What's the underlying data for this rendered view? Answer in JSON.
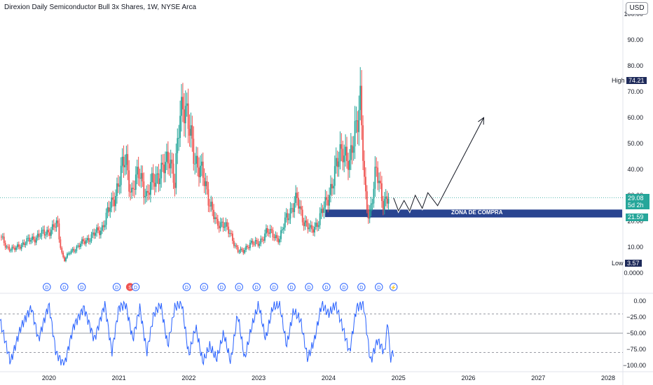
{
  "header": {
    "title": "Direxion Daily Semiconductor Bull 3x Shares, 1W, NYSE Arca",
    "currency": "USD"
  },
  "price_scale": {
    "high_label": "High",
    "high_value": "74.21",
    "low_label": "Low",
    "low_value": "3.57",
    "last_price": "29.08",
    "countdown": "5d 2h",
    "zone_level": "21.59",
    "zone_label": "ZONA DE COMPRA"
  },
  "dividend_markers": [
    {
      "year": 2019.97,
      "label": "D"
    },
    {
      "year": 2020.22,
      "label": "D"
    },
    {
      "year": 2020.47,
      "label": "D"
    },
    {
      "year": 2020.97,
      "label": "D"
    },
    {
      "year": 2021.16,
      "label": "S"
    },
    {
      "year": 2021.24,
      "label": "D"
    },
    {
      "year": 2021.97,
      "label": "D"
    },
    {
      "year": 2022.22,
      "label": "D"
    },
    {
      "year": 2022.47,
      "label": "D"
    },
    {
      "year": 2022.72,
      "label": "D"
    },
    {
      "year": 2022.97,
      "label": "D"
    },
    {
      "year": 2023.22,
      "label": "D"
    },
    {
      "year": 2023.47,
      "label": "D"
    },
    {
      "year": 2023.72,
      "label": "D"
    },
    {
      "year": 2023.97,
      "label": "D"
    },
    {
      "year": 2024.22,
      "label": "D"
    },
    {
      "year": 2024.47,
      "label": "D"
    },
    {
      "year": 2024.72,
      "label": "D"
    },
    {
      "year": 2024.93,
      "label": "⚡"
    }
  ],
  "colors": {
    "up": "#26a69a",
    "down": "#ef5350",
    "zone": "#1e3a8a",
    "osc": "#2962ff",
    "badge_dark": "#1e2a5a",
    "last_price": "#26a69a",
    "split": "#ef5350"
  },
  "chart_data": [
    {
      "type": "candlestick",
      "title": "",
      "x_ticks": [
        "2020",
        "2021",
        "2022",
        "2023",
        "2024",
        "2025",
        "2026",
        "2027",
        "2028"
      ],
      "x_range": [
        2019.3,
        2028.2
      ],
      "y_ticks": [
        "0.0000",
        "10.00",
        "20.00",
        "30.00",
        "40.00",
        "50.00",
        "60.00",
        "70.00",
        "80.00",
        "90.00",
        "100.00"
      ],
      "y_range": [
        0,
        100
      ],
      "grid": false,
      "anchors": [
        [
          2019.3,
          14
        ],
        [
          2019.4,
          10
        ],
        [
          2019.5,
          9
        ],
        [
          2019.6,
          11
        ],
        [
          2019.75,
          13
        ],
        [
          2019.9,
          15
        ],
        [
          2020.05,
          17
        ],
        [
          2020.12,
          19
        ],
        [
          2020.18,
          8
        ],
        [
          2020.22,
          5
        ],
        [
          2020.3,
          8
        ],
        [
          2020.45,
          11
        ],
        [
          2020.6,
          14
        ],
        [
          2020.75,
          17
        ],
        [
          2020.9,
          27
        ],
        [
          2021.0,
          35
        ],
        [
          2021.1,
          45
        ],
        [
          2021.18,
          30
        ],
        [
          2021.3,
          40
        ],
        [
          2021.4,
          28
        ],
        [
          2021.5,
          38
        ],
        [
          2021.6,
          37
        ],
        [
          2021.72,
          47
        ],
        [
          2021.8,
          33
        ],
        [
          2021.87,
          62
        ],
        [
          2021.92,
          68
        ],
        [
          2022.0,
          55
        ],
        [
          2022.1,
          44
        ],
        [
          2022.2,
          37
        ],
        [
          2022.3,
          28
        ],
        [
          2022.4,
          18
        ],
        [
          2022.5,
          20
        ],
        [
          2022.6,
          14
        ],
        [
          2022.7,
          9
        ],
        [
          2022.78,
          8
        ],
        [
          2022.88,
          12
        ],
        [
          2023.0,
          11
        ],
        [
          2023.1,
          16
        ],
        [
          2023.2,
          15
        ],
        [
          2023.3,
          13
        ],
        [
          2023.4,
          22
        ],
        [
          2023.55,
          28
        ],
        [
          2023.65,
          20
        ],
        [
          2023.75,
          16
        ],
        [
          2023.85,
          20
        ],
        [
          2023.95,
          26
        ],
        [
          2024.1,
          39
        ],
        [
          2024.2,
          50
        ],
        [
          2024.3,
          40
        ],
        [
          2024.38,
          57
        ],
        [
          2024.45,
          68
        ],
        [
          2024.52,
          30
        ],
        [
          2024.58,
          22
        ],
        [
          2024.68,
          39
        ],
        [
          2024.78,
          28
        ],
        [
          2024.87,
          29
        ]
      ],
      "high_point": [
        2021.92,
        74.21
      ],
      "low_point": [
        2019.26,
        3.57
      ],
      "buy_zone": {
        "from": 2023.95,
        "to": 2028.2,
        "low": 21.59,
        "high": 24.5
      },
      "projection": [
        [
          2024.93,
          29
        ],
        [
          2025.0,
          24
        ],
        [
          2025.08,
          28
        ],
        [
          2025.16,
          24
        ],
        [
          2025.24,
          30
        ],
        [
          2025.34,
          25
        ],
        [
          2025.42,
          31
        ],
        [
          2025.56,
          26
        ],
        [
          2026.22,
          60
        ]
      ]
    },
    {
      "type": "line",
      "title": "",
      "y_ticks": [
        "0.00",
        "−25.00",
        "−50.00",
        "−75.00",
        "−100.00"
      ],
      "y_range": [
        -100,
        0
      ],
      "levels": [
        -80,
        -50,
        -20
      ],
      "anchors": [
        [
          2019.3,
          -30
        ],
        [
          2019.45,
          -95
        ],
        [
          2019.6,
          -40
        ],
        [
          2019.75,
          -10
        ],
        [
          2019.85,
          -60
        ],
        [
          2020.0,
          -5
        ],
        [
          2020.1,
          -80
        ],
        [
          2020.22,
          -100
        ],
        [
          2020.35,
          -40
        ],
        [
          2020.5,
          -10
        ],
        [
          2020.65,
          -60
        ],
        [
          2020.8,
          -5
        ],
        [
          2020.9,
          -80
        ],
        [
          2021.0,
          -10
        ],
        [
          2021.1,
          -5
        ],
        [
          2021.2,
          -60
        ],
        [
          2021.3,
          -10
        ],
        [
          2021.4,
          -80
        ],
        [
          2021.5,
          -20
        ],
        [
          2021.6,
          -5
        ],
        [
          2021.7,
          -70
        ],
        [
          2021.8,
          -10
        ],
        [
          2021.9,
          -3
        ],
        [
          2022.0,
          -85
        ],
        [
          2022.1,
          -40
        ],
        [
          2022.2,
          -95
        ],
        [
          2022.3,
          -70
        ],
        [
          2022.4,
          -90
        ],
        [
          2022.5,
          -50
        ],
        [
          2022.6,
          -95
        ],
        [
          2022.7,
          -20
        ],
        [
          2022.8,
          -90
        ],
        [
          2022.9,
          -40
        ],
        [
          2023.0,
          -5
        ],
        [
          2023.1,
          -60
        ],
        [
          2023.2,
          -10
        ],
        [
          2023.3,
          -5
        ],
        [
          2023.4,
          -70
        ],
        [
          2023.5,
          -15
        ],
        [
          2023.6,
          -30
        ],
        [
          2023.7,
          -90
        ],
        [
          2023.8,
          -60
        ],
        [
          2023.9,
          -5
        ],
        [
          2024.0,
          -20
        ],
        [
          2024.1,
          -5
        ],
        [
          2024.2,
          -40
        ],
        [
          2024.3,
          -80
        ],
        [
          2024.4,
          -10
        ],
        [
          2024.5,
          -5
        ],
        [
          2024.6,
          -95
        ],
        [
          2024.7,
          -60
        ],
        [
          2024.8,
          -80
        ],
        [
          2024.85,
          -30
        ],
        [
          2024.88,
          -90
        ],
        [
          2024.93,
          -78
        ]
      ]
    }
  ]
}
